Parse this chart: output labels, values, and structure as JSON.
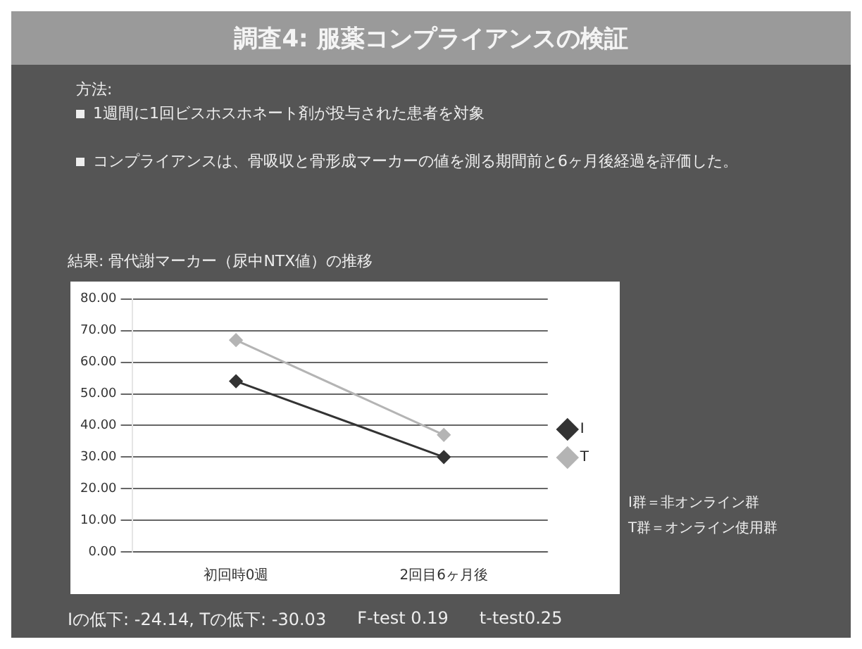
{
  "chart_data": {
    "type": "line",
    "title": "調査4: 服薬コンプライアンスの検証",
    "subtitle": "結果: 骨代謝マーカー（尿中NTX値）の推移",
    "annotations": [
      "方法:",
      "1週間に1回ビスホスホネート剤が投与された患者を対象",
      "コンプライアンスは、骨吸収と骨形成マーカーの値を測る期間前と6ヶ月後経過を評価した。",
      "I群＝非オンライン群",
      "T群＝オンライン使用群",
      "Iの低下: -24.14, Tの低下: -30.03",
      "F-test 0.19",
      "t-test0.25"
    ],
    "categories": [
      "初回時0週",
      "2回目6ヶ月後"
    ],
    "series": [
      {
        "name": "I",
        "color": "#333333",
        "values": [
          54,
          30
        ]
      },
      {
        "name": "T",
        "color": "#b4b4b4",
        "values": [
          67,
          37
        ]
      }
    ],
    "ylim": [
      0,
      80
    ],
    "yticks": [
      {
        "value": 0,
        "label": "0.00"
      },
      {
        "value": 10,
        "label": "10.00"
      },
      {
        "value": 20,
        "label": "20.00"
      },
      {
        "value": 30,
        "label": "30.00"
      },
      {
        "value": 40,
        "label": "40.00"
      },
      {
        "value": 50,
        "label": "50.00"
      },
      {
        "value": 60,
        "label": "60.00"
      },
      {
        "value": 70,
        "label": "70.00"
      },
      {
        "value": 80,
        "label": "80.00"
      }
    ],
    "grid": "y",
    "legend": "right",
    "marker": "diamond"
  }
}
